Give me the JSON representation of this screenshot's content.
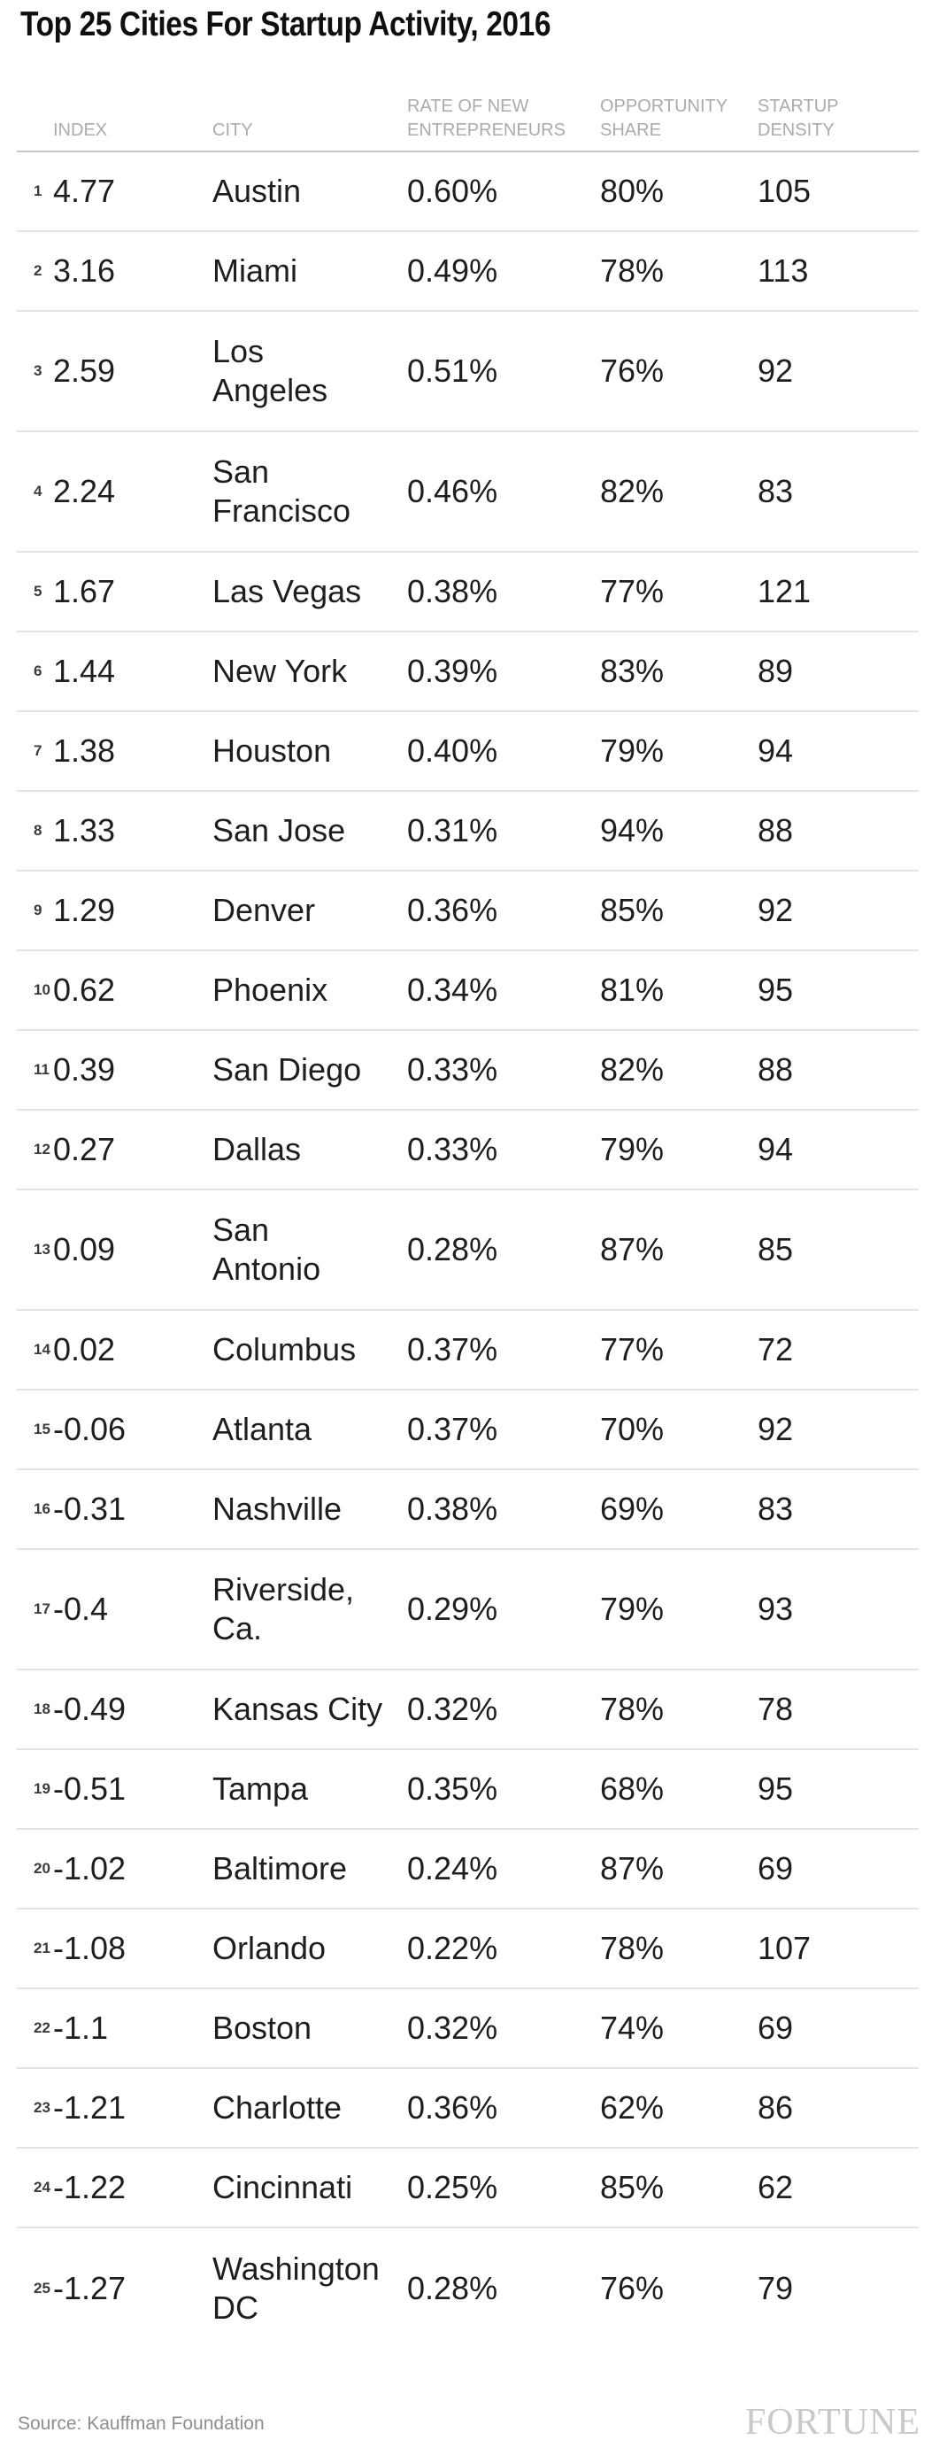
{
  "title": "Top 25 Cities For Startup Activity, 2016",
  "table": {
    "columns": {
      "index": "INDEX",
      "city": "CITY",
      "rate": "RATE OF NEW\nENTREPRENEURS",
      "share": "OPPORTUNITY\nSHARE",
      "density": "STARTUP\nDENSITY"
    },
    "rows": [
      {
        "rank": "1",
        "index": "4.77",
        "city": "Austin",
        "rate": "0.60%",
        "share": "80%",
        "density": "105"
      },
      {
        "rank": "2",
        "index": "3.16",
        "city": "Miami",
        "rate": "0.49%",
        "share": "78%",
        "density": "113"
      },
      {
        "rank": "3",
        "index": "2.59",
        "city": "Los\nAngeles",
        "rate": "0.51%",
        "share": "76%",
        "density": "92"
      },
      {
        "rank": "4",
        "index": "2.24",
        "city": "San\nFrancisco",
        "rate": "0.46%",
        "share": "82%",
        "density": "83"
      },
      {
        "rank": "5",
        "index": "1.67",
        "city": "Las Vegas",
        "rate": "0.38%",
        "share": "77%",
        "density": "121"
      },
      {
        "rank": "6",
        "index": "1.44",
        "city": "New York",
        "rate": "0.39%",
        "share": "83%",
        "density": "89"
      },
      {
        "rank": "7",
        "index": "1.38",
        "city": "Houston",
        "rate": "0.40%",
        "share": "79%",
        "density": "94"
      },
      {
        "rank": "8",
        "index": "1.33",
        "city": "San Jose",
        "rate": "0.31%",
        "share": "94%",
        "density": "88"
      },
      {
        "rank": "9",
        "index": "1.29",
        "city": "Denver",
        "rate": "0.36%",
        "share": "85%",
        "density": "92"
      },
      {
        "rank": "10",
        "index": "0.62",
        "city": "Phoenix",
        "rate": "0.34%",
        "share": "81%",
        "density": "95"
      },
      {
        "rank": "11",
        "index": "0.39",
        "city": "San Diego",
        "rate": "0.33%",
        "share": "82%",
        "density": "88"
      },
      {
        "rank": "12",
        "index": "0.27",
        "city": "Dallas",
        "rate": "0.33%",
        "share": "79%",
        "density": "94"
      },
      {
        "rank": "13",
        "index": "0.09",
        "city": "San\nAntonio",
        "rate": "0.28%",
        "share": "87%",
        "density": "85"
      },
      {
        "rank": "14",
        "index": "0.02",
        "city": "Columbus",
        "rate": "0.37%",
        "share": "77%",
        "density": "72"
      },
      {
        "rank": "15",
        "index": "-0.06",
        "city": "Atlanta",
        "rate": "0.37%",
        "share": "70%",
        "density": "92"
      },
      {
        "rank": "16",
        "index": "-0.31",
        "city": "Nashville",
        "rate": "0.38%",
        "share": "69%",
        "density": "83"
      },
      {
        "rank": "17",
        "index": "-0.4",
        "city": "Riverside,\nCa.",
        "rate": "0.29%",
        "share": "79%",
        "density": "93"
      },
      {
        "rank": "18",
        "index": "-0.49",
        "city": "Kansas City",
        "rate": "0.32%",
        "share": "78%",
        "density": "78"
      },
      {
        "rank": "19",
        "index": "-0.51",
        "city": "Tampa",
        "rate": "0.35%",
        "share": "68%",
        "density": "95"
      },
      {
        "rank": "20",
        "index": "-1.02",
        "city": "Baltimore",
        "rate": "0.24%",
        "share": "87%",
        "density": "69"
      },
      {
        "rank": "21",
        "index": "-1.08",
        "city": "Orlando",
        "rate": "0.22%",
        "share": "78%",
        "density": "107"
      },
      {
        "rank": "22",
        "index": "-1.1",
        "city": "Boston",
        "rate": "0.32%",
        "share": "74%",
        "density": "69"
      },
      {
        "rank": "23",
        "index": "-1.21",
        "city": "Charlotte",
        "rate": "0.36%",
        "share": "62%",
        "density": "86"
      },
      {
        "rank": "24",
        "index": "-1.22",
        "city": "Cincinnati",
        "rate": "0.25%",
        "share": "85%",
        "density": "62"
      },
      {
        "rank": "25",
        "index": "-1.27",
        "city": "Washington\nDC",
        "rate": "0.28%",
        "share": "76%",
        "density": "79"
      }
    ]
  },
  "footer": {
    "source": "Source: Kauffman Foundation",
    "brand": "FORTUNE"
  },
  "colors": {
    "title_text": "#0f0f0f",
    "header_text": "#ababab",
    "body_text": "#1e1e1e",
    "header_rule": "#c6c6c6",
    "row_rule": "#e4e4e4",
    "source_text": "#8e8e8e",
    "brand_text": "#c9c9c9"
  }
}
